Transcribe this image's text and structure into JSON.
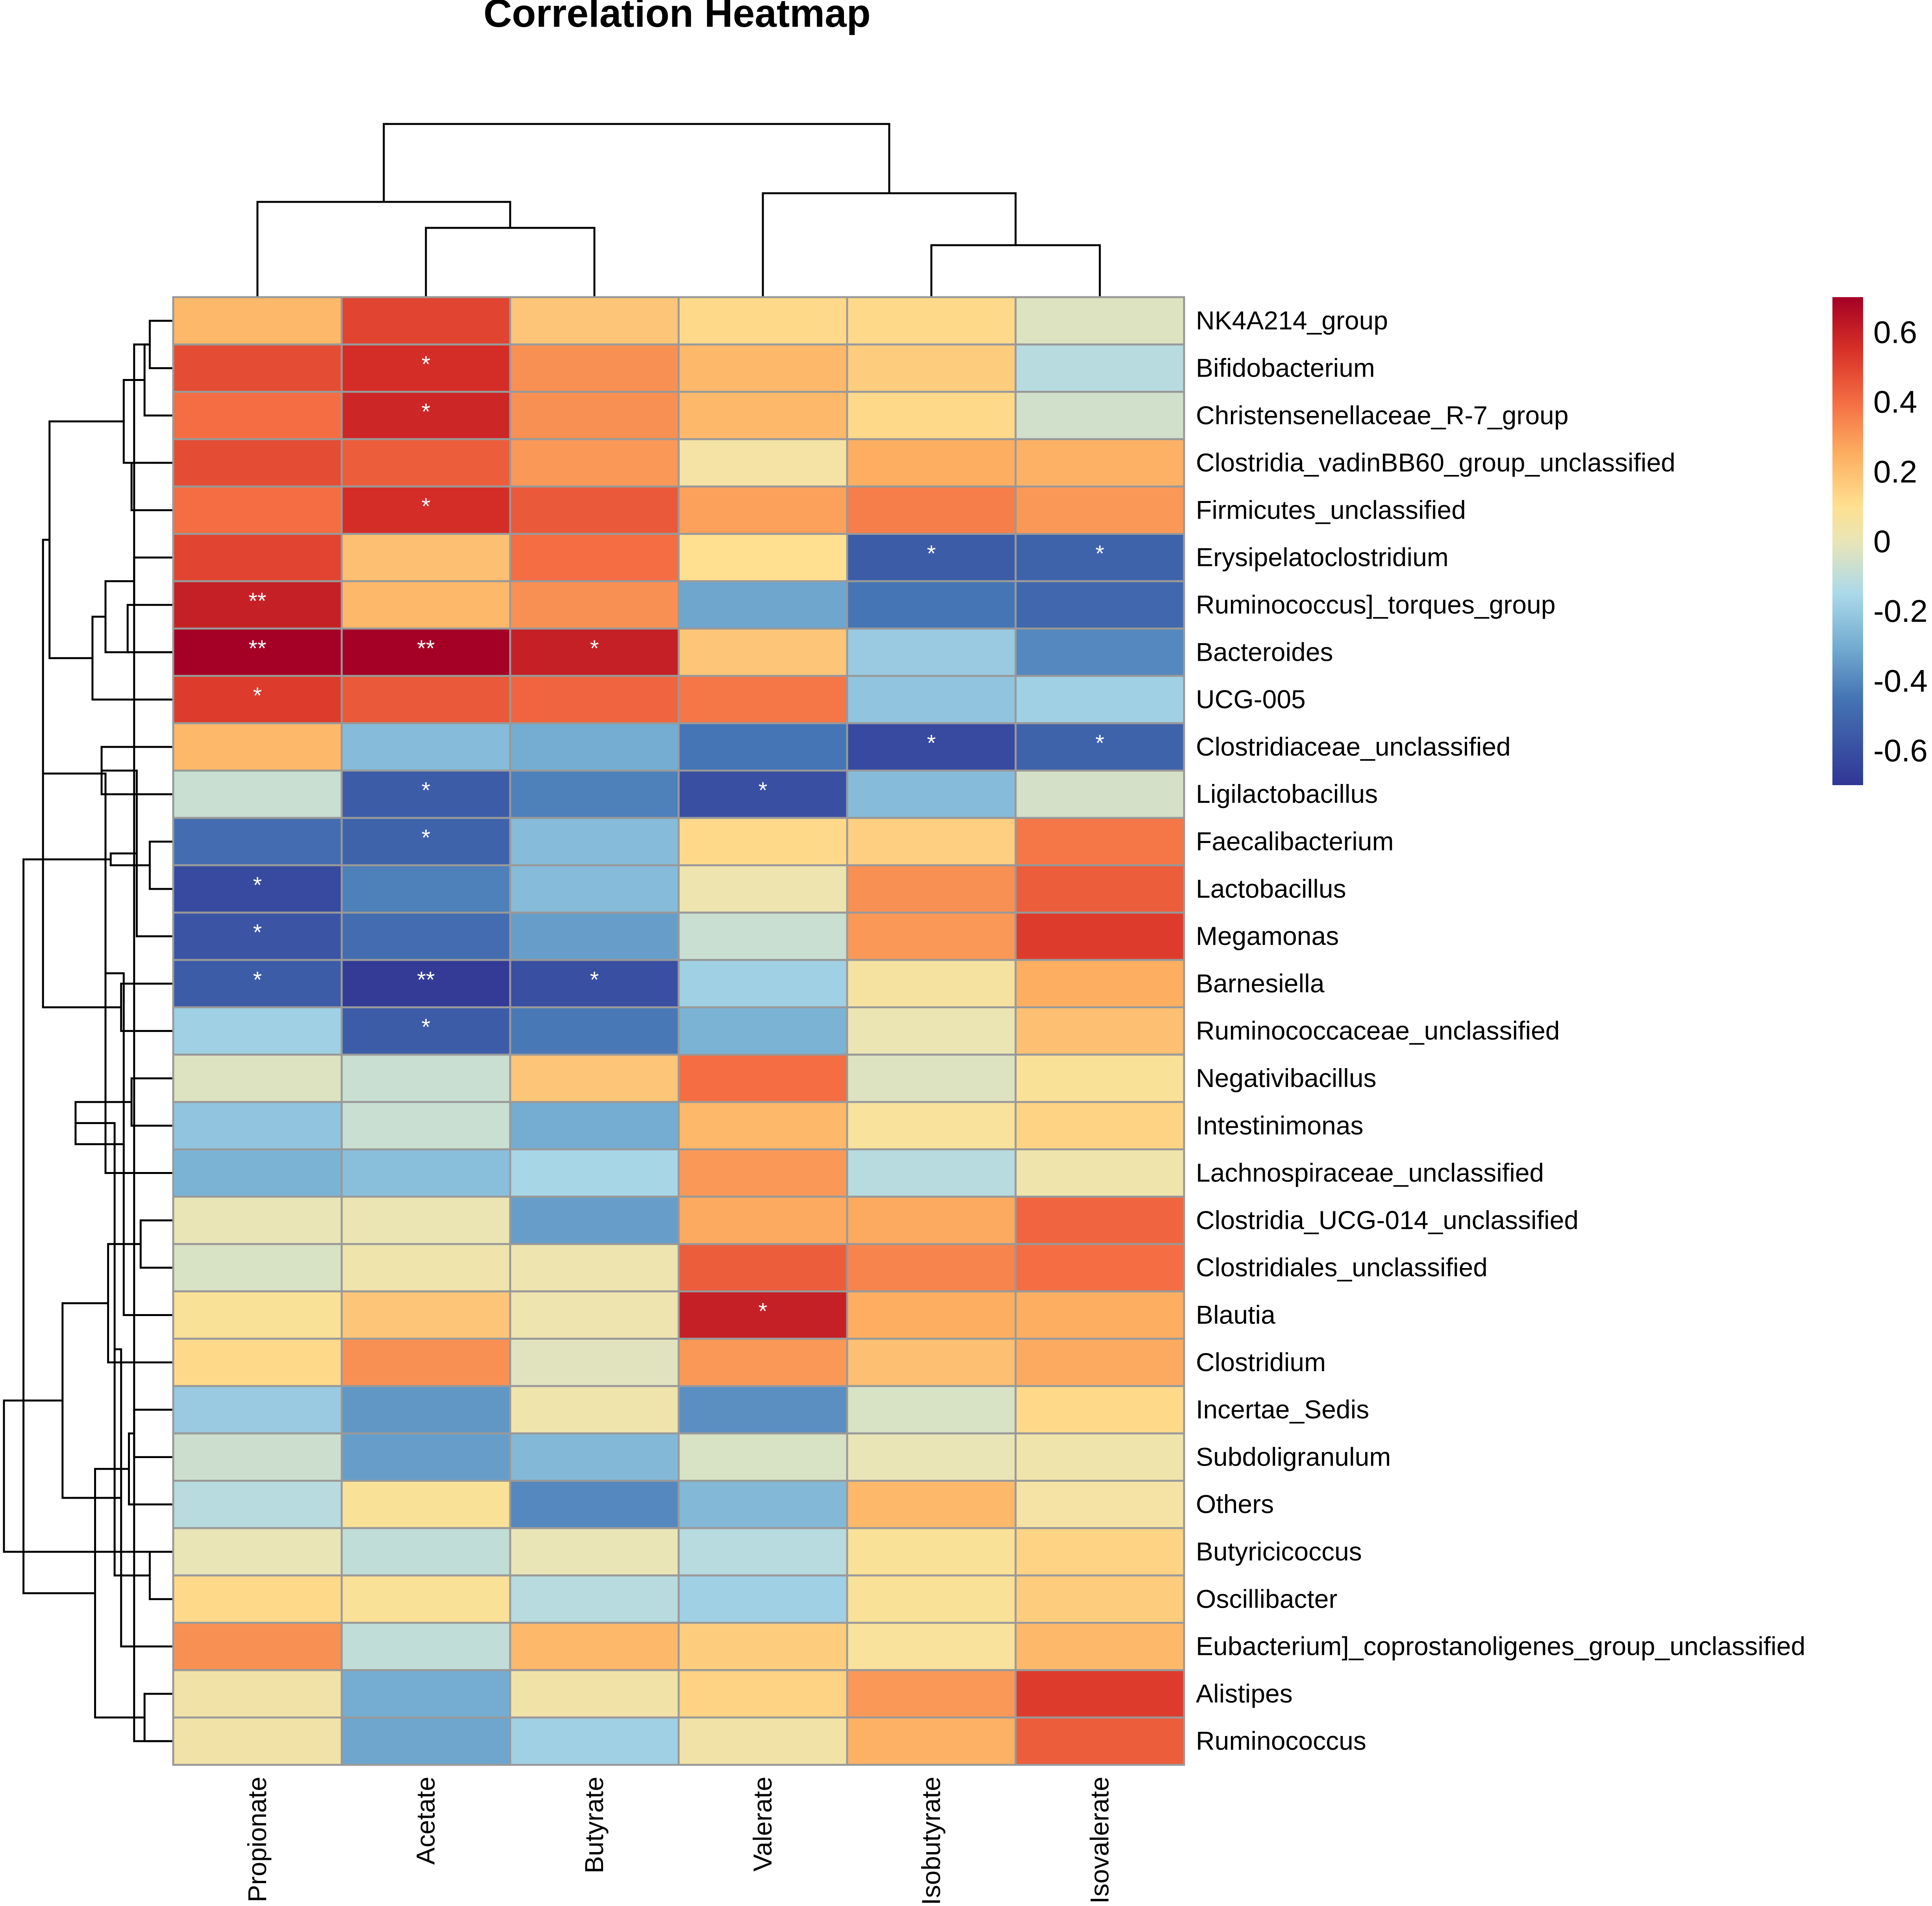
{
  "chart_data": {
    "type": "heatmap",
    "title": "Correlation Heatmap",
    "rows": [
      "NK4A214_group",
      "Bifidobacterium",
      "Christensenellaceae_R-7_group",
      "Clostridia_vadinBB60_group_unclassified",
      "Firmicutes_unclassified",
      "Erysipelatoclostridium",
      "Ruminococcus]_torques_group",
      "Bacteroides",
      "UCG-005",
      "Clostridiaceae_unclassified",
      "Ligilactobacillus",
      "Faecalibacterium",
      "Lactobacillus",
      "Megamonas",
      "Barnesiella",
      "Ruminococcaceae_unclassified",
      "Negativibacillus",
      "Intestinimonas",
      "Lachnospiraceae_unclassified",
      "Clostridia_UCG-014_unclassified",
      "Clostridiales_unclassified",
      "Blautia",
      "Clostridium",
      "Incertae_Sedis",
      "Subdoligranulum",
      "Others",
      "Butyricicoccus",
      "Oscillibacter",
      "Eubacterium]_coprostanoligenes_group_unclassified",
      "Alistipes",
      "Ruminococcus"
    ],
    "columns": [
      "Propionate",
      "Acetate",
      "Butyrate",
      "Valerate",
      "Isobutyrate",
      "Isovalerate"
    ],
    "values": [
      [
        0.22,
        0.5,
        0.18,
        0.12,
        0.12,
        -0.03
      ],
      [
        0.48,
        0.56,
        0.32,
        0.22,
        0.16,
        -0.12
      ],
      [
        0.4,
        0.58,
        0.32,
        0.22,
        0.12,
        -0.06
      ],
      [
        0.48,
        0.44,
        0.3,
        0.05,
        0.25,
        0.24
      ],
      [
        0.4,
        0.56,
        0.45,
        0.28,
        0.36,
        0.3
      ],
      [
        0.5,
        0.2,
        0.4,
        0.1,
        -0.55,
        -0.52
      ],
      [
        0.6,
        0.22,
        0.32,
        -0.32,
        -0.45,
        -0.5
      ],
      [
        0.7,
        0.7,
        0.6,
        0.18,
        -0.2,
        -0.4
      ],
      [
        0.52,
        0.45,
        0.42,
        0.38,
        -0.22,
        -0.18
      ],
      [
        0.22,
        -0.25,
        -0.3,
        -0.45,
        -0.62,
        -0.52
      ],
      [
        -0.08,
        -0.55,
        -0.42,
        -0.6,
        -0.25,
        -0.05
      ],
      [
        -0.48,
        -0.52,
        -0.25,
        0.12,
        0.15,
        0.38
      ],
      [
        -0.62,
        -0.42,
        -0.25,
        0.02,
        0.32,
        0.44
      ],
      [
        -0.58,
        -0.48,
        -0.34,
        -0.08,
        0.3,
        0.52
      ],
      [
        -0.55,
        -0.68,
        -0.6,
        -0.18,
        0.06,
        0.25
      ],
      [
        -0.18,
        -0.55,
        -0.44,
        -0.28,
        0.01,
        0.2
      ],
      [
        -0.03,
        -0.08,
        0.18,
        0.4,
        -0.03,
        0.08
      ],
      [
        -0.22,
        -0.08,
        -0.3,
        0.22,
        0.07,
        0.14
      ],
      [
        -0.28,
        -0.24,
        -0.16,
        0.3,
        -0.12,
        0.03
      ],
      [
        0.0,
        0.01,
        -0.34,
        0.26,
        0.26,
        0.42
      ],
      [
        -0.04,
        0.03,
        0.02,
        0.44,
        0.35,
        0.4
      ],
      [
        0.08,
        0.18,
        0.02,
        0.6,
        0.25,
        0.25
      ],
      [
        0.12,
        0.32,
        -0.02,
        0.3,
        0.2,
        0.26
      ],
      [
        -0.2,
        -0.36,
        0.03,
        -0.38,
        -0.04,
        0.12
      ],
      [
        -0.07,
        -0.34,
        -0.26,
        -0.04,
        0.0,
        0.03
      ],
      [
        -0.12,
        0.08,
        -0.4,
        -0.26,
        0.22,
        0.05
      ],
      [
        0.0,
        -0.1,
        0.0,
        -0.12,
        0.08,
        0.14
      ],
      [
        0.12,
        0.08,
        -0.12,
        -0.18,
        0.08,
        0.16
      ],
      [
        0.32,
        -0.1,
        0.22,
        0.16,
        0.07,
        0.22
      ],
      [
        0.04,
        -0.3,
        0.04,
        0.14,
        0.3,
        0.52
      ],
      [
        0.04,
        -0.32,
        -0.18,
        0.04,
        0.24,
        0.44
      ]
    ],
    "significance": [
      [
        "",
        "",
        "",
        "",
        "",
        ""
      ],
      [
        "",
        "*",
        "",
        "",
        "",
        ""
      ],
      [
        "",
        "*",
        "",
        "",
        "",
        ""
      ],
      [
        "",
        "",
        "",
        "",
        "",
        ""
      ],
      [
        "",
        "*",
        "",
        "",
        "",
        ""
      ],
      [
        "",
        "",
        "",
        "",
        "*",
        "*"
      ],
      [
        "**",
        "",
        "",
        "",
        "",
        ""
      ],
      [
        "**",
        "**",
        "*",
        "",
        "",
        ""
      ],
      [
        "*",
        "",
        "",
        "",
        "",
        ""
      ],
      [
        "",
        "",
        "",
        "",
        "*",
        "*"
      ],
      [
        "",
        "*",
        "",
        "*",
        "",
        ""
      ],
      [
        "",
        "*",
        "",
        "",
        "",
        ""
      ],
      [
        "*",
        "",
        "",
        "",
        "",
        ""
      ],
      [
        "*",
        "",
        "",
        "",
        "",
        ""
      ],
      [
        "*",
        "**",
        "*",
        "",
        "",
        ""
      ],
      [
        "",
        "*",
        "",
        "",
        "",
        ""
      ],
      [
        "",
        "",
        "",
        "",
        "",
        ""
      ],
      [
        "",
        "",
        "",
        "",
        "",
        ""
      ],
      [
        "",
        "",
        "",
        "",
        "",
        ""
      ],
      [
        "",
        "",
        "",
        "",
        "",
        ""
      ],
      [
        "",
        "",
        "",
        "",
        "",
        ""
      ],
      [
        "",
        "",
        "",
        "*",
        "",
        ""
      ],
      [
        "",
        "",
        "",
        "",
        "",
        ""
      ],
      [
        "",
        "",
        "",
        "",
        "",
        ""
      ],
      [
        "",
        "",
        "",
        "",
        "",
        ""
      ],
      [
        "",
        "",
        "",
        "",
        "",
        ""
      ],
      [
        "",
        "",
        "",
        "",
        "",
        ""
      ],
      [
        "",
        "",
        "",
        "",
        "",
        ""
      ],
      [
        "",
        "",
        "",
        "",
        "",
        ""
      ],
      [
        "",
        "",
        "",
        "",
        "",
        ""
      ],
      [
        "",
        "",
        "",
        "",
        "",
        ""
      ]
    ],
    "color_scale": {
      "min": -0.7,
      "max": 0.7,
      "stops": [
        {
          "value": -0.7,
          "color": "#313695"
        },
        {
          "value": -0.45,
          "color": "#4575b4"
        },
        {
          "value": -0.3,
          "color": "#74add1"
        },
        {
          "value": -0.15,
          "color": "#abd9e9"
        },
        {
          "value": 0.0,
          "color": "#e9e5b7"
        },
        {
          "value": 0.1,
          "color": "#fee090"
        },
        {
          "value": 0.25,
          "color": "#fdae61"
        },
        {
          "value": 0.4,
          "color": "#f46d43"
        },
        {
          "value": 0.55,
          "color": "#d73027"
        },
        {
          "value": 0.7,
          "color": "#a50026"
        }
      ]
    },
    "legend_ticks": [
      {
        "value": 0.6,
        "label": "0.6"
      },
      {
        "value": 0.4,
        "label": "0.4"
      },
      {
        "value": 0.2,
        "label": "0.2"
      },
      {
        "value": 0.0,
        "label": "0"
      },
      {
        "value": -0.2,
        "label": "-0.2"
      },
      {
        "value": -0.4,
        "label": "-0.4"
      },
      {
        "value": -0.6,
        "label": "-0.6"
      }
    ],
    "row_dendrogram": [
      [
        0,
        1,
        0.18
      ],
      [
        31,
        2,
        0.22
      ],
      [
        32,
        3,
        0.38
      ],
      [
        5,
        6,
        0.3
      ],
      [
        34,
        7,
        0.52
      ],
      [
        35,
        8,
        0.62
      ],
      [
        33,
        36,
        0.95
      ],
      [
        9,
        10,
        0.55
      ],
      [
        11,
        12,
        0.18
      ],
      [
        38,
        13,
        0.28
      ],
      [
        14,
        15,
        0.4
      ],
      [
        39,
        40,
        0.48
      ],
      [
        37,
        41,
        1.0
      ],
      [
        16,
        17,
        0.32
      ],
      [
        43,
        18,
        0.52
      ],
      [
        19,
        20,
        0.25
      ],
      [
        45,
        21,
        0.38
      ],
      [
        46,
        22,
        0.5
      ],
      [
        44,
        47,
        0.75
      ],
      [
        23,
        24,
        0.3
      ],
      [
        26,
        27,
        0.18
      ],
      [
        50,
        25,
        0.34
      ],
      [
        49,
        51,
        0.45
      ],
      [
        29,
        30,
        0.22
      ],
      [
        28,
        53,
        0.4
      ],
      [
        52,
        54,
        0.6
      ],
      [
        48,
        55,
        0.85
      ],
      [
        42,
        56,
        1.15
      ],
      [
        4,
        3,
        0.32
      ],
      [
        30,
        31,
        0.3
      ],
      [
        6,
        7,
        0.35
      ],
      [
        57,
        26,
        1.3
      ]
    ],
    "column_dendrogram": [
      [
        1,
        2,
        0.4
      ],
      [
        0,
        6,
        0.55
      ],
      [
        4,
        5,
        0.3
      ],
      [
        3,
        8,
        0.6
      ],
      [
        7,
        9,
        1.0
      ]
    ]
  }
}
